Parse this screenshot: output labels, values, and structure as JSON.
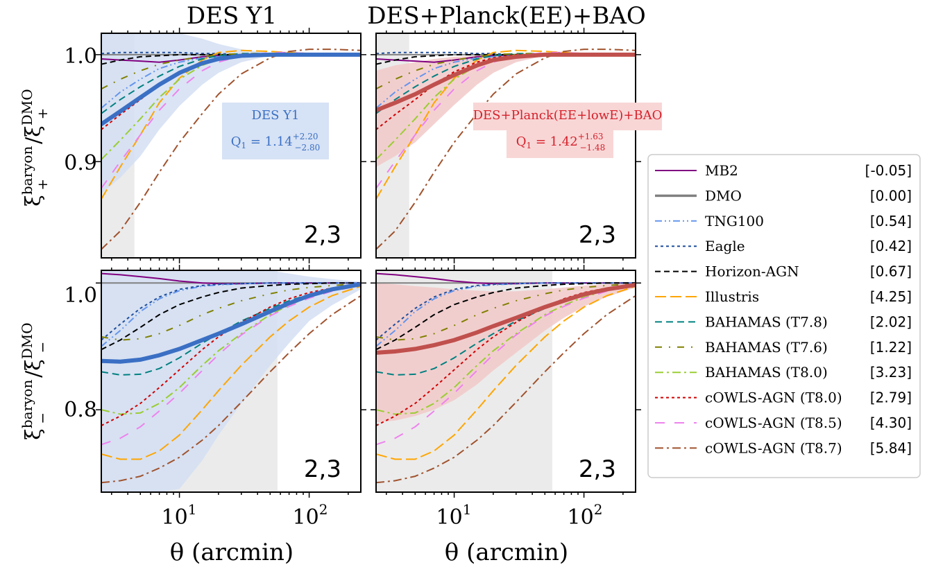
{
  "figure": {
    "col_titles": [
      "DES Y1",
      "DES+Planck(EE)+BAO"
    ],
    "xlabel": "θ (arcmin)",
    "ylabel_top": {
      "main": "ξ",
      "sup": "baryon",
      "sub": "+",
      "den": "ξ",
      "den_sup": "DMO",
      "den_sub": "+"
    },
    "ylabel_bottom": {
      "main": "ξ",
      "sup": "baryon",
      "sub": "−",
      "den": "ξ",
      "den_sup": "DMO",
      "den_sub": "−"
    },
    "xticks": [
      {
        "base": "10",
        "exp": "1",
        "value": 10
      },
      {
        "base": "10",
        "exp": "2",
        "value": 100
      }
    ],
    "yticks_top": [
      "1.0",
      "0.9"
    ],
    "yticks_bottom": [
      "1.0",
      "0.8"
    ],
    "panel_label": "2,3",
    "annotations": {
      "desy1": {
        "line1": "DES Y1",
        "line2_main": "Q",
        "line2_sub": "1",
        "line2_eq": " = 1.14",
        "line2_up": "+2.20",
        "line2_dn": "−2.80",
        "color": "#3a6fc4",
        "bg": "#d6e2f5"
      },
      "desplanck": {
        "line1": "DES+Planck(EE+lowE)+BAO",
        "line2_main": "Q",
        "line2_sub": "1",
        "line2_eq": " = 1.42",
        "line2_up": "+1.63",
        "line2_dn": "−1.48",
        "color": "#d6202a",
        "bg": "#f8d6d6"
      }
    }
  },
  "colors": {
    "desy1_band": "#d4dff3",
    "desy1_line": "#3a6fc4",
    "desplanck_band": "#f2c9c9",
    "desplanck_line": "#c0504d",
    "excluded": "#ebebeb"
  },
  "legend": [
    {
      "name": "MB2",
      "value": "[-0.05]",
      "color": "#800080",
      "dash": "",
      "width": 2
    },
    {
      "name": "DMO",
      "value": "[0.00]",
      "color": "#808080",
      "dash": "",
      "width": 3.5
    },
    {
      "name": "TNG100",
      "value": "[0.54]",
      "color": "#6495ed",
      "dash": "10,4,2,4,2,4",
      "width": 2
    },
    {
      "name": "Eagle",
      "value": "[0.42]",
      "color": "#1f4e9c",
      "dash": "4,4",
      "width": 2
    },
    {
      "name": "Horizon-AGN",
      "value": "[0.67]",
      "color": "#000000",
      "dash": "8,5",
      "width": 2
    },
    {
      "name": "Illustris",
      "value": "[4.25]",
      "color": "#ffa500",
      "dash": "16,6",
      "width": 2
    },
    {
      "name": "BAHAMAS (T7.8)",
      "value": "[2.02]",
      "color": "#008080",
      "dash": "10,6",
      "width": 2
    },
    {
      "name": "BAHAMAS (T7.6)",
      "value": "[1.22]",
      "color": "#808000",
      "dash": "10,10,2,10",
      "width": 2
    },
    {
      "name": "BAHAMAS (T8.0)",
      "value": "[3.23]",
      "color": "#9acd32",
      "dash": "12,5,3,5",
      "width": 2
    },
    {
      "name": "cOWLS-AGN (T8.0)",
      "value": "[2.79]",
      "color": "#d00000",
      "dash": "4,4",
      "width": 2
    },
    {
      "name": "cOWLS-AGN (T8.5)",
      "value": "[4.30]",
      "color": "#ee82ee",
      "dash": "14,14",
      "width": 2
    },
    {
      "name": "cOWLS-AGN (T8.7)",
      "value": "[5.84]",
      "color": "#a0522d",
      "dash": "12,5,3,5",
      "width": 2
    }
  ],
  "chart_data": {
    "type": "line",
    "x_scale": "log",
    "xlim": [
      2.5,
      250
    ],
    "ylim_top": [
      0.81,
      1.02
    ],
    "ylim_bottom": [
      0.67,
      1.02
    ],
    "excluded_theta_max": {
      "xi_plus": 4.5,
      "xi_minus": 57
    },
    "theta": [
      2.5,
      3.5,
      5,
      7,
      10,
      15,
      20,
      30,
      50,
      70,
      100,
      150,
      250
    ],
    "xi_plus": {
      "MB2": [
        0.996,
        0.995,
        0.994,
        0.993,
        0.995,
        0.998,
        0.999,
        1.0,
        1.0,
        1.0,
        1.0,
        1.0,
        1.0
      ],
      "TNG100": [
        0.95,
        0.965,
        0.977,
        0.987,
        0.993,
        0.997,
        0.998,
        0.999,
        1.0,
        1.0,
        1.0,
        1.0,
        1.0
      ],
      "Eagle": [
        1.001,
        1.002,
        1.002,
        1.002,
        1.002,
        1.001,
        1.001,
        1.0,
        1.0,
        1.0,
        1.0,
        1.0,
        1.0
      ],
      "Horizon-AGN": [
        0.991,
        0.995,
        0.998,
        0.999,
        1.0,
        1.0,
        1.0,
        1.0,
        1.0,
        1.0,
        1.0,
        1.0,
        1.0
      ],
      "Illustris": [
        0.865,
        0.895,
        0.925,
        0.955,
        0.978,
        0.995,
        1.002,
        1.004,
        1.003,
        1.002,
        1.001,
        1.0,
        1.0
      ],
      "BAHAMAS (T7.8)": [
        0.945,
        0.958,
        0.97,
        0.98,
        0.989,
        0.996,
        0.999,
        1.001,
        1.001,
        1.0,
        1.0,
        1.0,
        1.0
      ],
      "BAHAMAS (T7.6)": [
        0.968,
        0.977,
        0.985,
        0.991,
        0.995,
        0.998,
        1.0,
        1.001,
        1.001,
        1.0,
        1.0,
        1.0,
        1.0
      ],
      "BAHAMAS (T8.0)": [
        0.902,
        0.92,
        0.94,
        0.96,
        0.977,
        0.99,
        0.996,
        1.0,
        1.001,
        1.001,
        1.0,
        1.0,
        1.0
      ],
      "cOWLS-AGN (T8.0)": [
        0.93,
        0.944,
        0.958,
        0.972,
        0.984,
        0.993,
        0.997,
        1.0,
        1.0,
        1.0,
        1.0,
        1.0,
        1.0
      ],
      "cOWLS-AGN (T8.5)": [
        0.875,
        0.9,
        0.925,
        0.948,
        0.968,
        0.985,
        0.993,
        0.999,
        1.002,
        1.002,
        1.001,
        1.0,
        1.0
      ],
      "cOWLS-AGN (T8.7)": [
        0.818,
        0.835,
        0.862,
        0.89,
        0.918,
        0.945,
        0.963,
        0.982,
        0.997,
        1.003,
        1.005,
        1.005,
        1.004
      ],
      "DES Y1 mean": [
        0.935,
        0.947,
        0.96,
        0.972,
        0.983,
        0.992,
        0.996,
        0.999,
        1.0,
        1.0,
        1.0,
        1.0,
        1.0
      ],
      "DES Y1 band lower": [
        0.87,
        0.885,
        0.905,
        0.93,
        0.952,
        0.972,
        0.983,
        0.993,
        0.999,
        1.0,
        1.0,
        1.0,
        1.0
      ],
      "DES Y1 band upper": [
        1.02,
        1.02,
        1.02,
        1.02,
        1.02,
        1.015,
        1.01,
        1.005,
        1.002,
        1.001,
        1.0,
        1.0,
        1.0
      ],
      "DES+Planck mean": [
        0.948,
        0.955,
        0.963,
        0.972,
        0.981,
        0.99,
        0.995,
        0.998,
        1.0,
        1.0,
        1.0,
        1.0,
        1.0
      ],
      "DES+Planck band lower": [
        0.895,
        0.905,
        0.918,
        0.935,
        0.953,
        0.972,
        0.983,
        0.993,
        0.999,
        1.0,
        1.0,
        1.0,
        1.0
      ],
      "DES+Planck band upper": [
        0.985,
        0.99,
        0.993,
        0.996,
        0.998,
        0.999,
        1.0,
        1.0,
        1.0,
        1.0,
        1.0,
        1.0,
        1.0
      ]
    },
    "xi_minus": {
      "MB2": [
        1.015,
        1.013,
        1.01,
        1.007,
        1.003,
        1.0,
        0.999,
        0.999,
        1.0,
        1.0,
        1.0,
        1.0,
        1.0
      ],
      "TNG100": [
        0.9,
        0.925,
        0.955,
        0.975,
        0.988,
        0.995,
        0.997,
        0.999,
        1.0,
        1.0,
        1.0,
        1.0,
        1.0
      ],
      "Eagle": [
        0.91,
        0.935,
        0.96,
        0.978,
        0.99,
        0.996,
        0.998,
        0.999,
        1.0,
        1.0,
        1.0,
        1.0,
        1.0
      ],
      "Horizon-AGN": [
        0.895,
        0.91,
        0.93,
        0.95,
        0.966,
        0.978,
        0.985,
        0.992,
        0.996,
        0.998,
        0.999,
        1.0,
        1.0
      ],
      "Illustris": [
        0.73,
        0.722,
        0.722,
        0.735,
        0.76,
        0.8,
        0.83,
        0.87,
        0.915,
        0.94,
        0.962,
        0.98,
        0.995
      ],
      "BAHAMAS (T7.8)": [
        0.86,
        0.855,
        0.856,
        0.865,
        0.882,
        0.905,
        0.92,
        0.94,
        0.96,
        0.972,
        0.982,
        0.99,
        0.997
      ],
      "BAHAMAS (T7.6)": [
        0.915,
        0.91,
        0.912,
        0.92,
        0.933,
        0.95,
        0.96,
        0.972,
        0.983,
        0.989,
        0.993,
        0.996,
        0.999
      ],
      "BAHAMAS (T8.0)": [
        0.8,
        0.793,
        0.795,
        0.81,
        0.835,
        0.87,
        0.893,
        0.92,
        0.95,
        0.965,
        0.978,
        0.988,
        0.996
      ],
      "cOWLS-AGN (T8.0)": [
        0.775,
        0.79,
        0.81,
        0.835,
        0.863,
        0.895,
        0.915,
        0.938,
        0.962,
        0.975,
        0.985,
        0.992,
        0.998
      ],
      "cOWLS-AGN (T8.5)": [
        0.745,
        0.755,
        0.773,
        0.798,
        0.826,
        0.862,
        0.887,
        0.918,
        0.948,
        0.963,
        0.976,
        0.987,
        0.996
      ],
      "cOWLS-AGN (T8.7)": [
        0.685,
        0.688,
        0.695,
        0.708,
        0.725,
        0.752,
        0.775,
        0.812,
        0.86,
        0.89,
        0.92,
        0.95,
        0.98
      ],
      "DES Y1 mean": [
        0.877,
        0.876,
        0.879,
        0.886,
        0.896,
        0.91,
        0.92,
        0.935,
        0.955,
        0.968,
        0.98,
        0.99,
        0.998
      ],
      "DES Y1 band lower": [
        0.67,
        0.67,
        0.67,
        0.67,
        0.675,
        0.72,
        0.76,
        0.81,
        0.87,
        0.905,
        0.94,
        0.965,
        0.99
      ],
      "DES Y1 band upper": [
        1.02,
        1.02,
        1.02,
        1.02,
        1.02,
        1.02,
        1.02,
        1.02,
        1.02,
        1.015,
        1.01,
        1.006,
        1.002
      ],
      "DES+Planck mean": [
        0.89,
        0.892,
        0.896,
        0.902,
        0.91,
        0.922,
        0.932,
        0.945,
        0.962,
        0.972,
        0.982,
        0.99,
        0.997
      ],
      "DES+Planck band lower": [
        0.78,
        0.783,
        0.79,
        0.8,
        0.815,
        0.84,
        0.862,
        0.89,
        0.925,
        0.945,
        0.963,
        0.978,
        0.993
      ],
      "DES+Planck band upper": [
        1.0,
        0.998,
        0.995,
        0.993,
        0.99,
        0.988,
        0.987,
        0.987,
        0.99,
        0.993,
        0.996,
        0.998,
        1.0
      ]
    }
  }
}
